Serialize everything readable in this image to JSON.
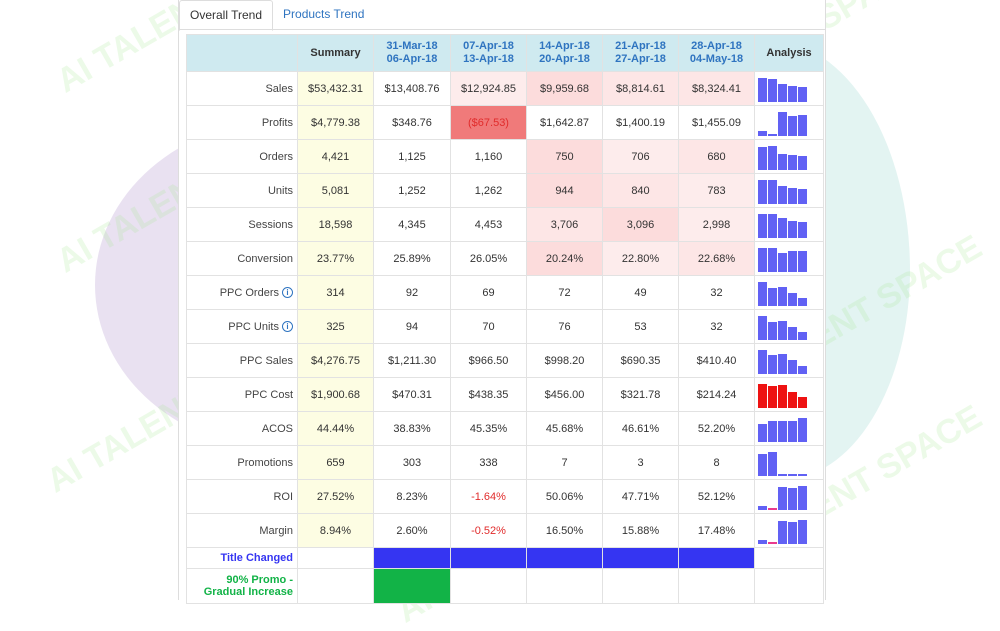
{
  "tabs": [
    {
      "label": "Overall Trend",
      "active": true
    },
    {
      "label": "Products Trend",
      "active": false
    }
  ],
  "watermark": "AI TALENT SPACE",
  "header": {
    "summary": "Summary",
    "analysis": "Analysis",
    "periods": [
      {
        "start": "31-Mar-18",
        "end": "06-Apr-18"
      },
      {
        "start": "07-Apr-18",
        "end": "13-Apr-18"
      },
      {
        "start": "14-Apr-18",
        "end": "20-Apr-18"
      },
      {
        "start": "21-Apr-18",
        "end": "27-Apr-18"
      },
      {
        "start": "28-Apr-18",
        "end": "04-May-18"
      }
    ]
  },
  "colors": {
    "bar_normal": "#6161f4",
    "bar_alert": "#ee1212",
    "event_title": "#3535f2",
    "event_promo": "#12b347"
  },
  "rows": [
    {
      "label": "Sales",
      "summary": "$53,432.31",
      "values": [
        "$13,408.76",
        "$12,924.85",
        "$9,959.68",
        "$8,814.61",
        "$8,324.41"
      ],
      "shade": [
        "",
        "h3",
        "h1",
        "h2",
        "h2"
      ],
      "spark": [
        100,
        96,
        74,
        66,
        62
      ],
      "spark_color": "blue"
    },
    {
      "label": "Profits",
      "summary": "$4,779.38",
      "values": [
        "$348.76",
        "($67.53)",
        "$1,642.87",
        "$1,400.19",
        "$1,455.09"
      ],
      "shade": [
        "",
        "strong",
        "",
        "",
        ""
      ],
      "spark": [
        21,
        4,
        100,
        85,
        89
      ],
      "spark_color": "blue"
    },
    {
      "label": "Orders",
      "summary": "4,421",
      "values": [
        "1,125",
        "1,160",
        "750",
        "706",
        "680"
      ],
      "shade": [
        "",
        "",
        "h1",
        "h3",
        "h2"
      ],
      "spark": [
        97,
        100,
        65,
        61,
        59
      ],
      "spark_color": "blue"
    },
    {
      "label": "Units",
      "summary": "5,081",
      "values": [
        "1,252",
        "1,262",
        "944",
        "840",
        "783"
      ],
      "shade": [
        "",
        "",
        "h1",
        "h2",
        "h3"
      ],
      "spark": [
        99,
        100,
        75,
        67,
        62
      ],
      "spark_color": "blue"
    },
    {
      "label": "Sessions",
      "summary": "18,598",
      "values": [
        "4,345",
        "4,453",
        "3,706",
        "3,096",
        "2,998"
      ],
      "shade": [
        "",
        "",
        "h2",
        "h1",
        "h3"
      ],
      "spark": [
        98,
        100,
        83,
        70,
        67
      ],
      "spark_color": "blue"
    },
    {
      "label": "Conversion",
      "summary": "23.77%",
      "values": [
        "25.89%",
        "26.05%",
        "20.24%",
        "22.80%",
        "22.68%"
      ],
      "shade": [
        "",
        "",
        "h1",
        "h3",
        "h2"
      ],
      "spark": [
        99,
        100,
        78,
        88,
        87
      ],
      "spark_color": "blue"
    },
    {
      "label": "PPC Orders",
      "info": true,
      "summary": "314",
      "values": [
        "92",
        "69",
        "72",
        "49",
        "32"
      ],
      "shade": [
        "",
        "",
        "",
        "",
        ""
      ],
      "spark": [
        100,
        75,
        78,
        53,
        35
      ],
      "spark_color": "blue"
    },
    {
      "label": "PPC Units",
      "info": true,
      "summary": "325",
      "values": [
        "94",
        "70",
        "76",
        "53",
        "32"
      ],
      "shade": [
        "",
        "",
        "",
        "",
        ""
      ],
      "spark": [
        100,
        74,
        81,
        56,
        34
      ],
      "spark_color": "blue"
    },
    {
      "label": "PPC Sales",
      "summary": "$4,276.75",
      "values": [
        "$1,211.30",
        "$966.50",
        "$998.20",
        "$690.35",
        "$410.40"
      ],
      "shade": [
        "",
        "",
        "",
        "",
        ""
      ],
      "spark": [
        100,
        80,
        82,
        57,
        34
      ],
      "spark_color": "blue"
    },
    {
      "label": "PPC Cost",
      "summary": "$1,900.68",
      "values": [
        "$470.31",
        "$438.35",
        "$456.00",
        "$321.78",
        "$214.24"
      ],
      "shade": [
        "",
        "",
        "",
        "",
        ""
      ],
      "spark": [
        100,
        93,
        97,
        68,
        46
      ],
      "spark_color": "red"
    },
    {
      "label": "ACOS",
      "summary": "44.44%",
      "values": [
        "38.83%",
        "45.35%",
        "45.68%",
        "46.61%",
        "52.20%"
      ],
      "shade": [
        "",
        "",
        "",
        "",
        ""
      ],
      "spark": [
        74,
        87,
        88,
        89,
        100
      ],
      "spark_color": "blue"
    },
    {
      "label": "Promotions",
      "summary": "659",
      "values": [
        "303",
        "338",
        "7",
        "3",
        "8"
      ],
      "shade": [
        "",
        "",
        "",
        "",
        ""
      ],
      "spark": [
        90,
        100,
        2,
        1,
        2
      ],
      "spark_color": "blue"
    },
    {
      "label": "ROI",
      "summary": "27.52%",
      "values": [
        "8.23%",
        "-1.64%",
        "50.06%",
        "47.71%",
        "52.12%"
      ],
      "shade": [
        "",
        "neg",
        "",
        "",
        ""
      ],
      "spark": [
        16,
        -3,
        96,
        92,
        100
      ],
      "spark_color": "blue"
    },
    {
      "label": "Margin",
      "summary": "8.94%",
      "values": [
        "2.60%",
        "-0.52%",
        "16.50%",
        "15.88%",
        "17.48%"
      ],
      "shade": [
        "",
        "neg",
        "",
        "",
        ""
      ],
      "spark": [
        15,
        -3,
        94,
        91,
        100
      ],
      "spark_color": "blue"
    }
  ],
  "events": [
    {
      "label": "Title Changed",
      "color": "#3535f2",
      "active": [
        true,
        true,
        true,
        true,
        true
      ]
    },
    {
      "label": "90% Promo - Gradual Increase",
      "color": "#12b347",
      "active": [
        true,
        false,
        false,
        false,
        false
      ]
    }
  ]
}
